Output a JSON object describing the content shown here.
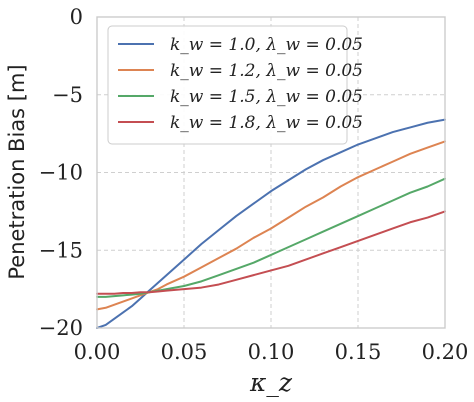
{
  "chart_data": {
    "type": "line",
    "title": "",
    "xlabel": "κ_z",
    "ylabel": "Penetration Bias [m]",
    "xlim": [
      0.0,
      0.2
    ],
    "ylim": [
      -20,
      0
    ],
    "x_ticks": [
      0.0,
      0.05,
      0.1,
      0.15,
      0.2
    ],
    "x_tick_labels": [
      "0.00",
      "0.05",
      "0.10",
      "0.15",
      "0.20"
    ],
    "y_ticks": [
      0,
      -5,
      -10,
      -15,
      -20
    ],
    "y_tick_labels": [
      "0",
      "−5",
      "−10",
      "−15",
      "−20"
    ],
    "grid": true,
    "legend_position": "top-left",
    "series": [
      {
        "name": "k_w = 1.0, λ_w = 0.05",
        "color": "#4c72b0",
        "x": [
          0.0,
          0.005,
          0.01,
          0.015,
          0.02,
          0.025,
          0.03,
          0.035,
          0.04,
          0.05,
          0.06,
          0.07,
          0.08,
          0.09,
          0.1,
          0.11,
          0.12,
          0.13,
          0.14,
          0.15,
          0.16,
          0.17,
          0.18,
          0.19,
          0.2
        ],
        "y": [
          -20.0,
          -19.8,
          -19.4,
          -19.0,
          -18.6,
          -18.1,
          -17.6,
          -17.1,
          -16.6,
          -15.6,
          -14.6,
          -13.7,
          -12.8,
          -12.0,
          -11.2,
          -10.5,
          -9.8,
          -9.2,
          -8.7,
          -8.2,
          -7.8,
          -7.4,
          -7.1,
          -6.8,
          -6.6
        ]
      },
      {
        "name": "k_w = 1.2, λ_w = 0.05",
        "color": "#dd8452",
        "x": [
          0.0,
          0.005,
          0.01,
          0.015,
          0.02,
          0.025,
          0.03,
          0.035,
          0.04,
          0.05,
          0.06,
          0.07,
          0.08,
          0.09,
          0.1,
          0.11,
          0.12,
          0.13,
          0.14,
          0.15,
          0.16,
          0.17,
          0.18,
          0.19,
          0.2
        ],
        "y": [
          -18.8,
          -18.7,
          -18.5,
          -18.3,
          -18.1,
          -17.9,
          -17.7,
          -17.5,
          -17.2,
          -16.7,
          -16.1,
          -15.5,
          -14.9,
          -14.2,
          -13.6,
          -12.9,
          -12.2,
          -11.6,
          -10.9,
          -10.3,
          -9.8,
          -9.3,
          -8.8,
          -8.4,
          -8.0
        ]
      },
      {
        "name": "k_w = 1.5, λ_w = 0.05",
        "color": "#55a868",
        "x": [
          0.0,
          0.005,
          0.01,
          0.015,
          0.02,
          0.025,
          0.03,
          0.035,
          0.04,
          0.05,
          0.06,
          0.07,
          0.08,
          0.09,
          0.1,
          0.11,
          0.12,
          0.13,
          0.14,
          0.15,
          0.16,
          0.17,
          0.18,
          0.19,
          0.2
        ],
        "y": [
          -18.0,
          -18.0,
          -17.95,
          -17.9,
          -17.85,
          -17.8,
          -17.7,
          -17.6,
          -17.5,
          -17.3,
          -17.0,
          -16.6,
          -16.2,
          -15.8,
          -15.3,
          -14.8,
          -14.3,
          -13.8,
          -13.3,
          -12.8,
          -12.3,
          -11.8,
          -11.3,
          -10.9,
          -10.4
        ]
      },
      {
        "name": "k_w = 1.8, λ_w = 0.05",
        "color": "#c44e52",
        "x": [
          0.0,
          0.005,
          0.01,
          0.015,
          0.02,
          0.025,
          0.03,
          0.035,
          0.04,
          0.05,
          0.06,
          0.07,
          0.08,
          0.09,
          0.1,
          0.11,
          0.12,
          0.13,
          0.14,
          0.15,
          0.16,
          0.17,
          0.18,
          0.19,
          0.2
        ],
        "y": [
          -17.8,
          -17.8,
          -17.8,
          -17.75,
          -17.75,
          -17.7,
          -17.7,
          -17.65,
          -17.6,
          -17.5,
          -17.4,
          -17.2,
          -16.9,
          -16.6,
          -16.3,
          -16.0,
          -15.6,
          -15.2,
          -14.8,
          -14.4,
          -14.0,
          -13.6,
          -13.2,
          -12.9,
          -12.5
        ]
      }
    ]
  }
}
